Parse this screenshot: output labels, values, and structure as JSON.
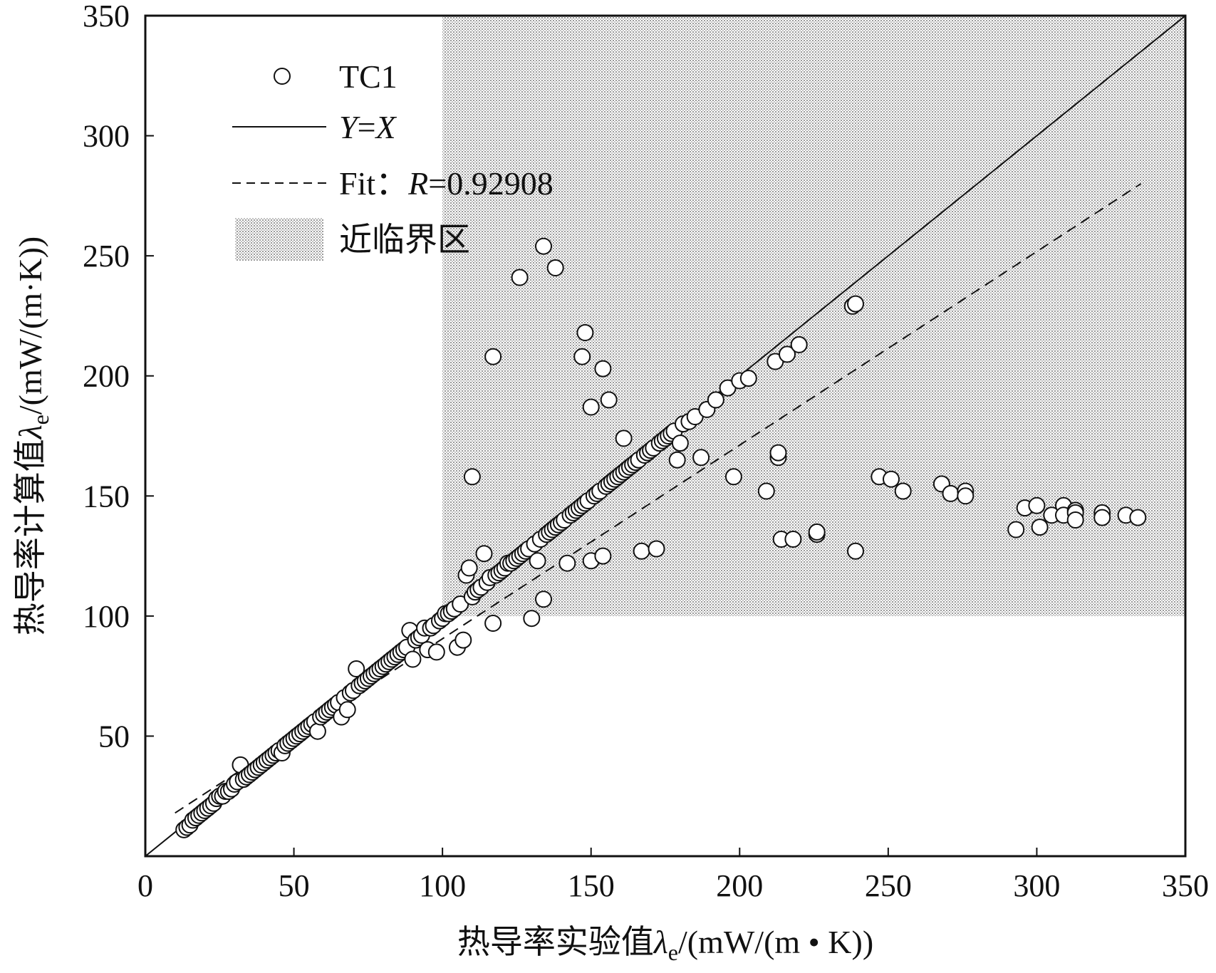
{
  "chart_data": {
    "type": "scatter",
    "xlabel": "热导率实验值λe/(mW/(m·K))",
    "ylabel": "热导率计算值λe/(mW/(m·K))",
    "xlabel_parts": {
      "main": "热导率实验值",
      "sym": "λ",
      "sub": "e",
      "unit": "/(mW/(m • K))"
    },
    "ylabel_parts": {
      "main": "热导率计算值",
      "sym": "λ",
      "sub": "e",
      "unit": "/(mW/(m·K))"
    },
    "xlim": [
      0,
      350
    ],
    "ylim": [
      0,
      350
    ],
    "x_ticks": [
      0,
      50,
      100,
      150,
      200,
      250,
      300,
      350
    ],
    "y_ticks": [
      50,
      100,
      150,
      200,
      250,
      300,
      350
    ],
    "x_tick_labels": [
      "0",
      "50",
      "100",
      "150",
      "200",
      "250",
      "300",
      "350"
    ],
    "y_tick_labels": [
      "50",
      "100",
      "150",
      "200",
      "250",
      "300",
      "350"
    ],
    "grid": false,
    "legend_position": "top-left",
    "legend": {
      "scatter": "TC1",
      "identity": {
        "y": "Y",
        "eq": "=",
        "x": "X"
      },
      "fit": {
        "prefix": "Fit：",
        "r": "R",
        "eq": "=0.92908"
      },
      "region": "近临界区"
    },
    "near_critical_region": {
      "x": [
        100,
        350
      ],
      "y": [
        100,
        350
      ]
    },
    "identity_line": {
      "x": [
        0,
        350
      ],
      "y": [
        0,
        350
      ]
    },
    "fit_line": {
      "r": 0.92908,
      "x": [
        10,
        335
      ],
      "y": [
        18,
        280
      ]
    },
    "series": [
      {
        "name": "TC1",
        "marker": "open-circle",
        "points": [
          [
            13,
            11
          ],
          [
            14,
            12
          ],
          [
            15,
            13
          ],
          [
            16,
            15
          ],
          [
            17,
            16
          ],
          [
            18,
            17
          ],
          [
            19,
            18
          ],
          [
            20,
            19
          ],
          [
            21,
            20
          ],
          [
            22,
            21
          ],
          [
            23,
            22
          ],
          [
            24,
            24
          ],
          [
            25,
            25
          ],
          [
            26,
            25
          ],
          [
            27,
            27
          ],
          [
            28,
            27
          ],
          [
            29,
            28
          ],
          [
            30,
            30
          ],
          [
            31,
            31
          ],
          [
            32,
            38
          ],
          [
            33,
            32
          ],
          [
            34,
            33
          ],
          [
            35,
            34
          ],
          [
            36,
            35
          ],
          [
            37,
            36
          ],
          [
            38,
            37
          ],
          [
            39,
            38
          ],
          [
            40,
            39
          ],
          [
            41,
            40
          ],
          [
            42,
            41
          ],
          [
            43,
            42
          ],
          [
            44,
            43
          ],
          [
            45,
            44
          ],
          [
            46,
            43
          ],
          [
            47,
            46
          ],
          [
            48,
            47
          ],
          [
            49,
            48
          ],
          [
            50,
            49
          ],
          [
            51,
            50
          ],
          [
            52,
            51
          ],
          [
            53,
            52
          ],
          [
            54,
            53
          ],
          [
            55,
            54
          ],
          [
            56,
            55
          ],
          [
            57,
            56
          ],
          [
            58,
            52
          ],
          [
            59,
            58
          ],
          [
            60,
            59
          ],
          [
            61,
            60
          ],
          [
            62,
            61
          ],
          [
            63,
            62
          ],
          [
            64,
            63
          ],
          [
            65,
            64
          ],
          [
            66,
            58
          ],
          [
            67,
            66
          ],
          [
            68,
            61
          ],
          [
            69,
            68
          ],
          [
            70,
            69
          ],
          [
            71,
            78
          ],
          [
            72,
            71
          ],
          [
            73,
            72
          ],
          [
            74,
            73
          ],
          [
            75,
            74
          ],
          [
            76,
            75
          ],
          [
            77,
            76
          ],
          [
            78,
            77
          ],
          [
            79,
            78
          ],
          [
            80,
            79
          ],
          [
            81,
            80
          ],
          [
            82,
            81
          ],
          [
            83,
            82
          ],
          [
            84,
            83
          ],
          [
            85,
            84
          ],
          [
            86,
            85
          ],
          [
            87,
            86
          ],
          [
            88,
            87
          ],
          [
            89,
            94
          ],
          [
            90,
            82
          ],
          [
            91,
            90
          ],
          [
            92,
            91
          ],
          [
            93,
            92
          ],
          [
            94,
            95
          ],
          [
            95,
            86
          ],
          [
            96,
            95
          ],
          [
            97,
            96
          ],
          [
            98,
            85
          ],
          [
            99,
            98
          ],
          [
            100,
            99
          ],
          [
            101,
            101
          ],
          [
            102,
            101
          ],
          [
            103,
            102
          ],
          [
            104,
            103
          ],
          [
            105,
            87
          ],
          [
            106,
            105
          ],
          [
            107,
            90
          ],
          [
            108,
            117
          ],
          [
            109,
            120
          ],
          [
            110,
            108
          ],
          [
            111,
            110
          ],
          [
            112,
            111
          ],
          [
            113,
            112
          ],
          [
            114,
            126
          ],
          [
            115,
            114
          ],
          [
            116,
            116
          ],
          [
            117,
            97
          ],
          [
            118,
            117
          ],
          [
            119,
            118
          ],
          [
            120,
            119
          ],
          [
            121,
            120
          ],
          [
            122,
            122
          ],
          [
            123,
            122
          ],
          [
            124,
            123
          ],
          [
            125,
            124
          ],
          [
            126,
            125
          ],
          [
            127,
            126
          ],
          [
            128,
            127
          ],
          [
            129,
            128
          ],
          [
            130,
            99
          ],
          [
            131,
            130
          ],
          [
            132,
            123
          ],
          [
            133,
            132
          ],
          [
            134,
            107
          ],
          [
            135,
            134
          ],
          [
            136,
            135
          ],
          [
            137,
            136
          ],
          [
            138,
            137
          ],
          [
            139,
            138
          ],
          [
            140,
            139
          ],
          [
            141,
            140
          ],
          [
            142,
            122
          ],
          [
            143,
            142
          ],
          [
            144,
            143
          ],
          [
            145,
            144
          ],
          [
            146,
            145
          ],
          [
            147,
            146
          ],
          [
            148,
            147
          ],
          [
            149,
            148
          ],
          [
            150,
            123
          ],
          [
            151,
            150
          ],
          [
            152,
            151
          ],
          [
            153,
            152
          ],
          [
            154,
            125
          ],
          [
            155,
            154
          ],
          [
            156,
            155
          ],
          [
            157,
            156
          ],
          [
            158,
            157
          ],
          [
            159,
            158
          ],
          [
            160,
            159
          ],
          [
            161,
            160
          ],
          [
            162,
            161
          ],
          [
            163,
            162
          ],
          [
            164,
            163
          ],
          [
            165,
            164
          ],
          [
            166,
            165
          ],
          [
            167,
            127
          ],
          [
            168,
            167
          ],
          [
            169,
            168
          ],
          [
            170,
            169
          ],
          [
            171,
            170
          ],
          [
            172,
            128
          ],
          [
            173,
            172
          ],
          [
            174,
            173
          ],
          [
            175,
            174
          ],
          [
            176,
            175
          ],
          [
            177,
            176
          ],
          [
            178,
            177
          ],
          [
            179,
            165
          ],
          [
            180,
            172
          ],
          [
            181,
            180
          ],
          [
            183,
            181
          ],
          [
            185,
            183
          ],
          [
            187,
            166
          ],
          [
            189,
            186
          ],
          [
            192,
            190
          ],
          [
            196,
            195
          ],
          [
            198,
            158
          ],
          [
            200,
            198
          ],
          [
            203,
            199
          ],
          [
            209,
            152
          ],
          [
            212,
            206
          ],
          [
            213,
            166
          ],
          [
            213,
            168
          ],
          [
            214,
            132
          ],
          [
            216,
            209
          ],
          [
            218,
            132
          ],
          [
            220,
            213
          ],
          [
            226,
            134
          ],
          [
            226,
            135
          ],
          [
            238,
            229
          ],
          [
            239,
            127
          ],
          [
            239,
            230
          ],
          [
            110,
            158
          ],
          [
            117,
            208
          ],
          [
            126,
            241
          ],
          [
            134,
            254
          ],
          [
            138,
            245
          ],
          [
            147,
            208
          ],
          [
            148,
            218
          ],
          [
            150,
            187
          ],
          [
            154,
            203
          ],
          [
            156,
            190
          ],
          [
            161,
            174
          ],
          [
            247,
            158
          ],
          [
            251,
            157
          ],
          [
            255,
            152
          ],
          [
            268,
            155
          ],
          [
            271,
            151
          ],
          [
            276,
            152
          ],
          [
            276,
            150
          ],
          [
            293,
            136
          ],
          [
            296,
            145
          ],
          [
            300,
            146
          ],
          [
            301,
            137
          ],
          [
            305,
            142
          ],
          [
            309,
            146
          ],
          [
            309,
            142
          ],
          [
            313,
            144
          ],
          [
            313,
            143
          ],
          [
            313,
            140
          ],
          [
            322,
            143
          ],
          [
            322,
            141
          ],
          [
            330,
            142
          ],
          [
            334,
            141
          ]
        ]
      }
    ]
  }
}
